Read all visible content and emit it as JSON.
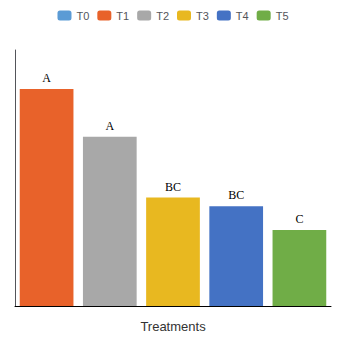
{
  "chart_data": {
    "type": "bar",
    "categories": [
      null,
      null,
      null,
      null,
      null
    ],
    "xlabel": "Treatments",
    "series": [
      {
        "name": "T0",
        "color": "#5B9BD5",
        "values": [
          null,
          null,
          null,
          null,
          null
        ],
        "labels": [
          null,
          null,
          null,
          null,
          null
        ]
      },
      {
        "name": "T1",
        "color": "#E8622A",
        "values": [
          100,
          null,
          null,
          null,
          null
        ],
        "labels": [
          "A",
          null,
          null,
          null,
          null
        ]
      },
      {
        "name": "T2",
        "color": "#A8A8A8",
        "values": [
          null,
          78,
          null,
          null,
          null
        ],
        "labels": [
          null,
          "A",
          null,
          null,
          null
        ]
      },
      {
        "name": "T3",
        "color": "#E8B820",
        "values": [
          null,
          null,
          50,
          null,
          null
        ],
        "labels": [
          null,
          null,
          "BC",
          null,
          null
        ]
      },
      {
        "name": "T4",
        "color": "#4472C4",
        "values": [
          null,
          null,
          null,
          46,
          null
        ],
        "labels": [
          null,
          null,
          null,
          "BC",
          null
        ]
      },
      {
        "name": "T5",
        "color": "#70AD47",
        "values": [
          null,
          null,
          null,
          null,
          35
        ],
        "labels": [
          null,
          null,
          null,
          null,
          "C"
        ]
      }
    ],
    "stacked": true,
    "ylim": [
      0,
      118
    ],
    "yticks": [],
    "tick_labels": false,
    "grid": false,
    "legend": "top"
  }
}
